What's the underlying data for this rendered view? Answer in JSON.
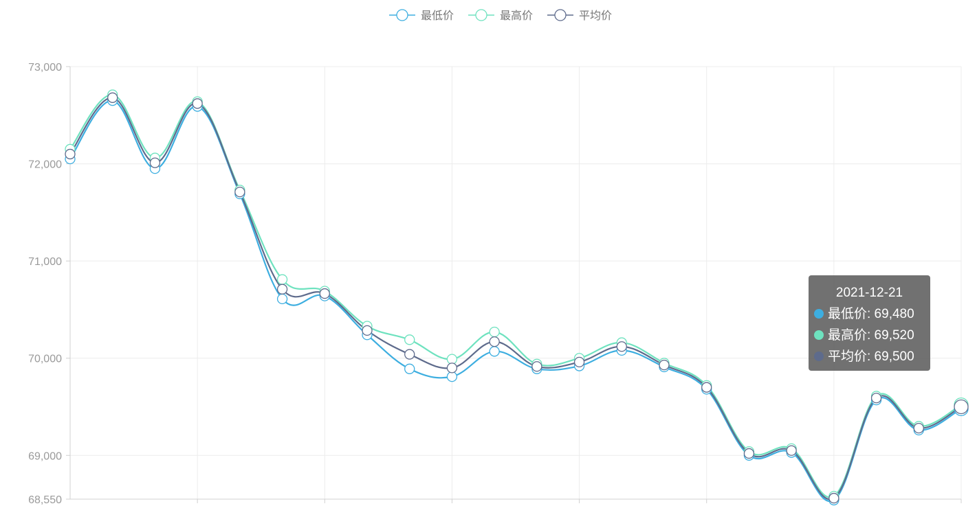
{
  "chart_data": {
    "type": "line",
    "title": "",
    "xlabel": "",
    "ylabel": "",
    "ylim": [
      68550,
      73000
    ],
    "yticks": [
      {
        "value": 73000,
        "label": "73,000"
      },
      {
        "value": 72000,
        "label": "72,000"
      },
      {
        "value": 71000,
        "label": "71,000"
      },
      {
        "value": 70000,
        "label": "70,000"
      },
      {
        "value": 69000,
        "label": "69,000"
      },
      {
        "value": 68550,
        "label": "68,550"
      }
    ],
    "x": [
      0,
      1,
      2,
      3,
      4,
      5,
      6,
      7,
      8,
      9,
      10,
      11,
      12,
      13,
      14,
      15,
      16,
      17,
      18,
      19,
      20,
      21
    ],
    "x_gridlines": [
      3,
      6,
      9,
      12,
      15,
      18,
      21
    ],
    "legend_position": "top-center",
    "grid": true,
    "smooth": true,
    "series": [
      {
        "name": "最低价",
        "color": "#3daee0",
        "values": [
          72050,
          72650,
          71950,
          72590,
          71690,
          70610,
          70640,
          70240,
          69890,
          69810,
          70070,
          69890,
          69920,
          70080,
          69910,
          69680,
          69000,
          69030,
          68540,
          69570,
          69260,
          69480
        ]
      },
      {
        "name": "最高价",
        "color": "#6ee2bf",
        "values": [
          72150,
          72710,
          72060,
          72640,
          71730,
          70810,
          70690,
          70330,
          70190,
          69990,
          70270,
          69940,
          70000,
          70160,
          69950,
          69720,
          69040,
          69070,
          68580,
          69610,
          69300,
          69520
        ]
      },
      {
        "name": "平均价",
        "color": "#5e6b8c",
        "values": [
          72100,
          72680,
          72010,
          72620,
          71710,
          70710,
          70665,
          70285,
          70040,
          69900,
          70170,
          69915,
          69960,
          70120,
          69930,
          69700,
          69020,
          69050,
          68560,
          69590,
          69280,
          69500
        ]
      }
    ],
    "tooltip": {
      "title": "2021-12-21",
      "rows": [
        {
          "label": "最低价: 69,480",
          "color": "#3daee0"
        },
        {
          "label": "最高价: 69,520",
          "color": "#6ee2bf"
        },
        {
          "label": "平均价: 69,500",
          "color": "#5e6b8c"
        }
      ]
    }
  }
}
